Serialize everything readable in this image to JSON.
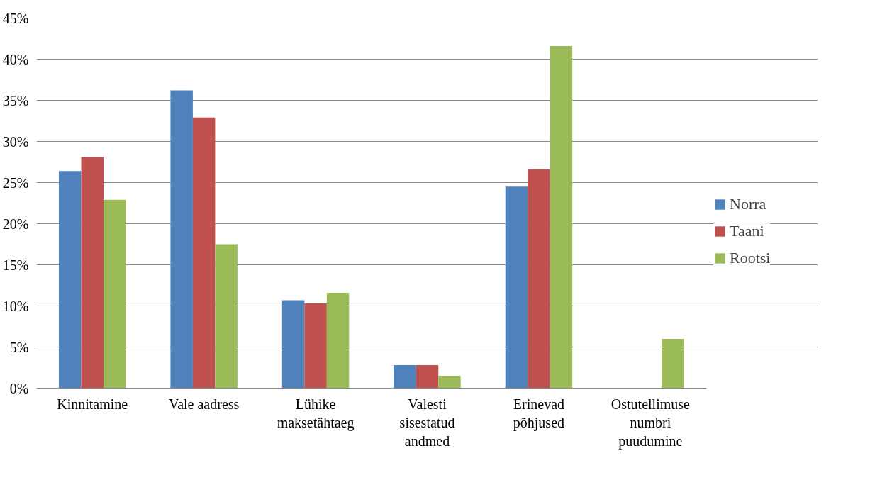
{
  "chart_data": {
    "type": "bar",
    "categories": [
      "Kinnitamine",
      "Vale aadress",
      "Lühike\nmaksetähtaeg",
      "Valesti\nsisestatud\nandmed",
      "Erinevad\npõhjused",
      "Ostutellimuse\nnumbri\npuudumine"
    ],
    "series": [
      {
        "name": "Norra",
        "color": "#4f81bd",
        "values": [
          26.4,
          36.2,
          10.7,
          2.8,
          24.5,
          0
        ]
      },
      {
        "name": "Taani",
        "color": "#c0504d",
        "values": [
          28.1,
          32.9,
          10.3,
          2.8,
          26.6,
          0
        ]
      },
      {
        "name": "Rootsi",
        "color": "#9bbb59",
        "values": [
          22.9,
          17.5,
          11.6,
          1.5,
          41.6,
          6.0
        ]
      }
    ],
    "ylim": [
      0,
      45
    ],
    "yticks": [
      {
        "value": 0,
        "label": "0%"
      },
      {
        "value": 5,
        "label": "5%"
      },
      {
        "value": 10,
        "label": "10%"
      },
      {
        "value": 15,
        "label": "15%"
      },
      {
        "value": 20,
        "label": "20%"
      },
      {
        "value": 25,
        "label": "25%"
      },
      {
        "value": 30,
        "label": "30%"
      },
      {
        "value": 35,
        "label": "35%"
      },
      {
        "value": 40,
        "label": "40%"
      },
      {
        "value": 45,
        "label": "45%"
      }
    ],
    "grid": "y",
    "legend": "right"
  }
}
